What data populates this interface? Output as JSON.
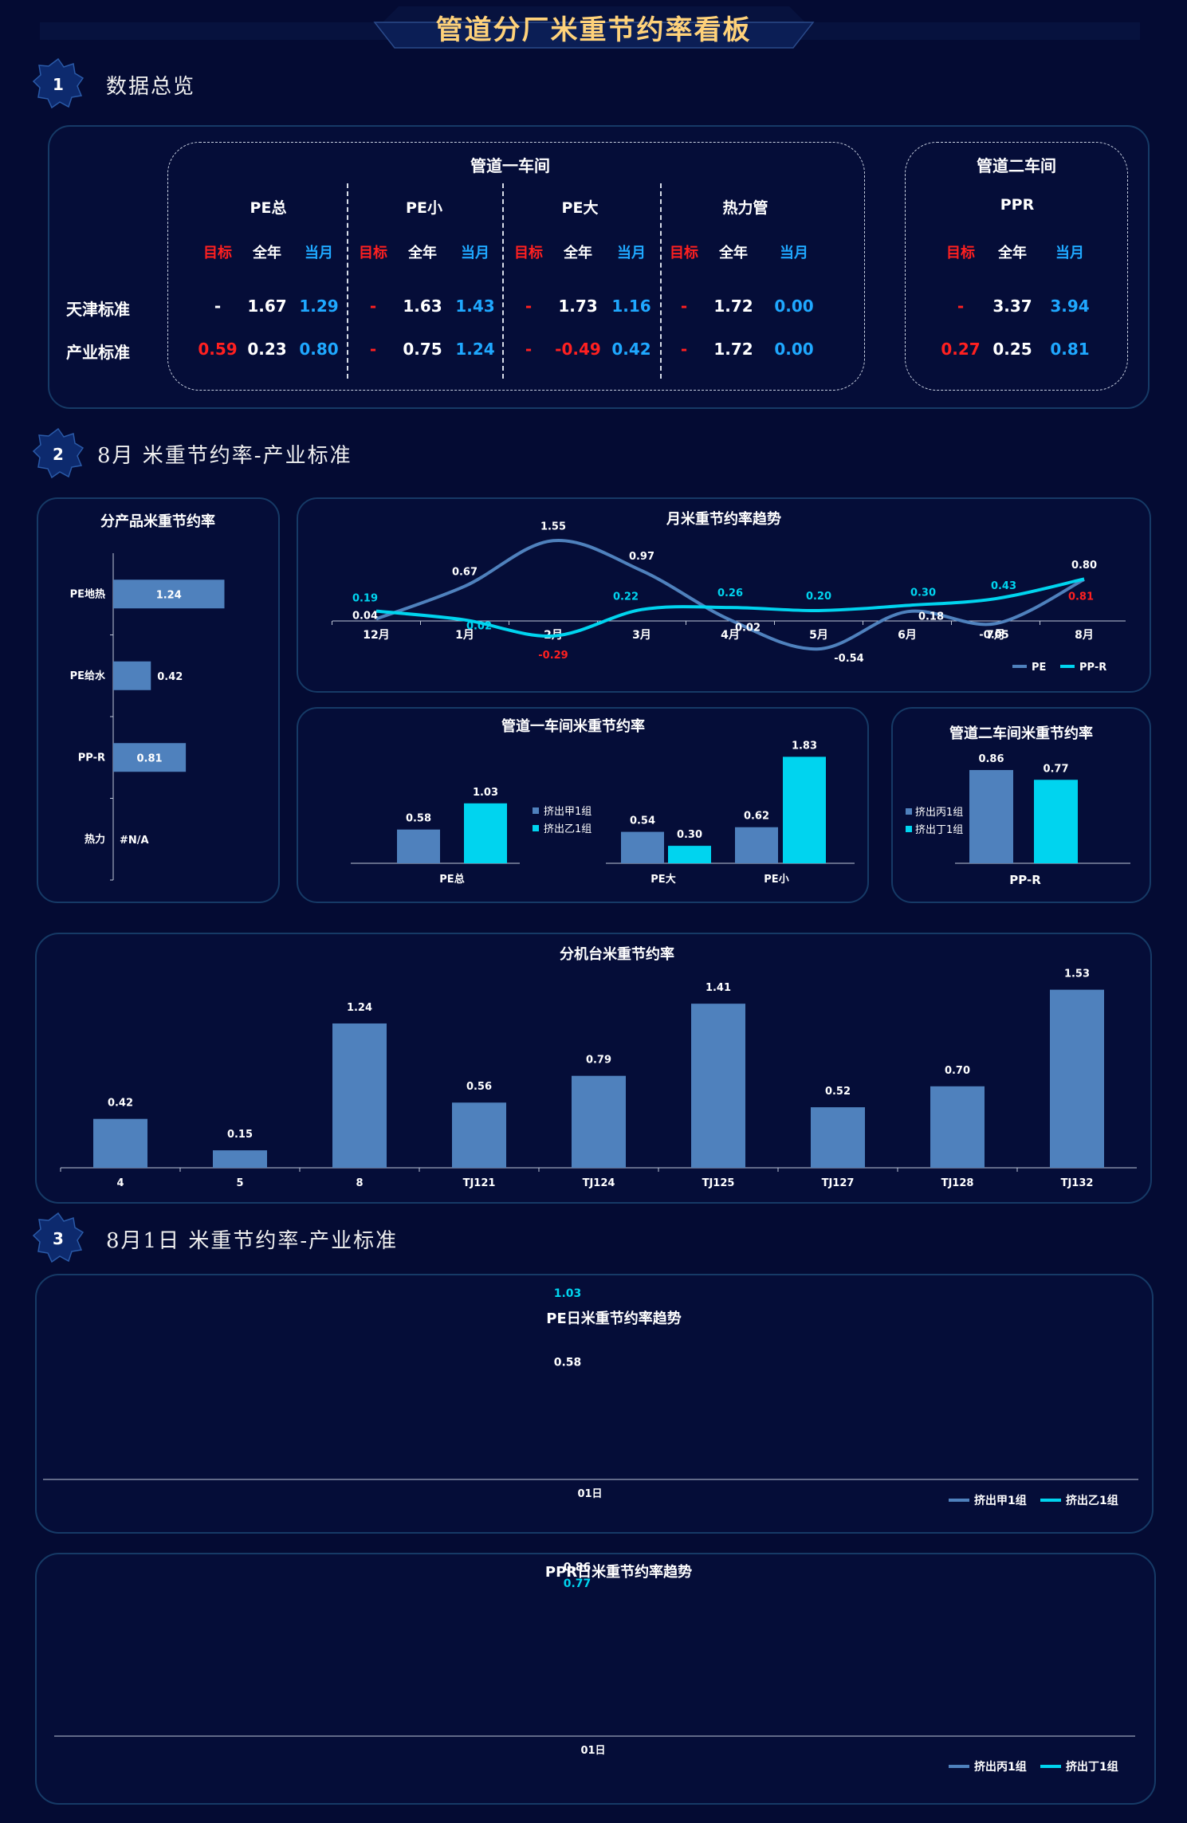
{
  "header": {
    "title": "管道分厂米重节约率看板"
  },
  "sections": [
    {
      "num": "1",
      "title": "数据总览"
    },
    {
      "num": "2",
      "title": "8月 米重节约率-产业标准"
    },
    {
      "num": "3",
      "title": "8月1日 米重节约率-产业标准"
    }
  ],
  "overview": {
    "workshop1": {
      "title": "管道一车间"
    },
    "workshop2": {
      "title": "管道二车间"
    },
    "row_labels": [
      "天津标准",
      "产业标准"
    ],
    "col_headers": {
      "target": "目标",
      "year": "全年",
      "month": "当月"
    },
    "products": [
      {
        "name": "PE总",
        "rows": [
          {
            "target": "-",
            "year": "1.67",
            "month": "1.29"
          },
          {
            "target": "0.59",
            "year": "0.23",
            "month": "0.80"
          }
        ]
      },
      {
        "name": "PE小",
        "rows": [
          {
            "target": "-",
            "year": "1.63",
            "month": "1.43"
          },
          {
            "target": "-",
            "year": "0.75",
            "month": "1.24"
          }
        ]
      },
      {
        "name": "PE大",
        "rows": [
          {
            "target": "-",
            "year": "1.73",
            "month": "1.16"
          },
          {
            "target": "-",
            "year": "-0.49",
            "month": "0.42"
          }
        ]
      },
      {
        "name": "热力管",
        "rows": [
          {
            "target": "-",
            "year": "1.72",
            "month": "0.00"
          },
          {
            "target": "-",
            "year": "1.72",
            "month": "0.00"
          }
        ]
      },
      {
        "name": "PPR",
        "rows": [
          {
            "target": "-",
            "year": "3.37",
            "month": "3.94"
          },
          {
            "target": "0.27",
            "year": "0.25",
            "month": "0.81"
          }
        ]
      }
    ]
  },
  "chart_data": [
    {
      "id": "product",
      "type": "bar",
      "orientation": "horizontal",
      "title": "分产品米重节约率",
      "categories": [
        "PE地热",
        "PE给水",
        "PP-R",
        "热力"
      ],
      "values": [
        1.24,
        0.42,
        0.81,
        null
      ],
      "labels": [
        "1.24",
        "0.42",
        "0.81",
        "#N/A"
      ]
    },
    {
      "id": "monthly",
      "type": "line",
      "title": "月米重节约率趋势",
      "categories": [
        "12月",
        "1月",
        "2月",
        "3月",
        "4月",
        "5月",
        "6月",
        "7月",
        "8月"
      ],
      "series": [
        {
          "name": "PE",
          "values": [
            0.04,
            0.67,
            1.55,
            0.97,
            0.02,
            -0.54,
            0.18,
            -0.05,
            0.8
          ]
        },
        {
          "name": "PP-R",
          "values": [
            0.19,
            0.02,
            -0.29,
            0.22,
            0.26,
            0.2,
            0.3,
            0.43,
            0.81
          ]
        }
      ]
    },
    {
      "id": "ws1",
      "type": "bar",
      "title": "管道一车间米重节约率",
      "groups": [
        "PE总",
        "PE大",
        "PE小"
      ],
      "series": [
        {
          "name": "挤出甲1组",
          "values": [
            0.58,
            0.54,
            0.62
          ]
        },
        {
          "name": "挤出乙1组",
          "values": [
            1.03,
            0.3,
            1.83
          ]
        }
      ]
    },
    {
      "id": "ws2",
      "type": "bar",
      "title": "管道二车间米重节约率",
      "groups": [
        "PP-R"
      ],
      "series": [
        {
          "name": "挤出丙1组",
          "values": [
            0.86
          ]
        },
        {
          "name": "挤出丁1组",
          "values": [
            0.77
          ]
        }
      ]
    },
    {
      "id": "machine",
      "type": "bar",
      "title": "分机台米重节约率",
      "categories": [
        "4",
        "5",
        "8",
        "TJ121",
        "TJ124",
        "TJ125",
        "TJ127",
        "TJ128",
        "TJ132"
      ],
      "values": [
        0.42,
        0.15,
        1.24,
        0.56,
        0.79,
        1.41,
        0.52,
        0.7,
        1.53
      ]
    },
    {
      "id": "pe_daily",
      "type": "line",
      "title": "PE日米重节约率趋势",
      "categories": [
        "01日"
      ],
      "series": [
        {
          "name": "挤出甲1组",
          "values": [
            0.58
          ]
        },
        {
          "name": "挤出乙1组",
          "values": [
            1.03
          ]
        }
      ]
    },
    {
      "id": "ppr_daily",
      "type": "line",
      "title": "PPR日米重节约率趋势",
      "categories": [
        "01日"
      ],
      "series": [
        {
          "name": "挤出丙1组",
          "values": [
            0.86
          ]
        },
        {
          "name": "挤出丁1组",
          "values": [
            0.77
          ]
        }
      ]
    }
  ],
  "colors": {
    "background": "#040b33",
    "panel_border": "#163a66",
    "accent_dark": "#4f81bd",
    "accent_light": "#00d4ef",
    "target_red": "#ff2020",
    "month_blue": "#1fa8ff",
    "title_gold": "#ffd27a"
  }
}
